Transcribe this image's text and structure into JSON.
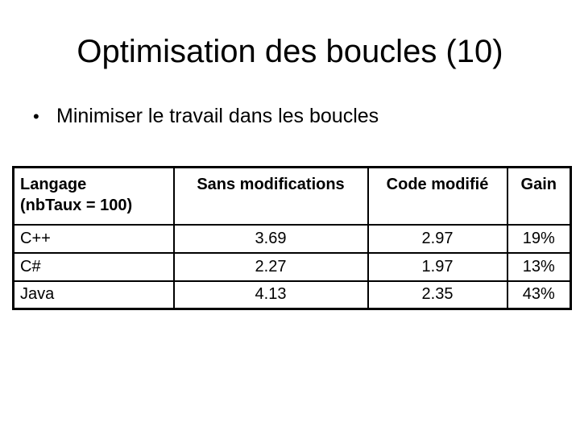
{
  "slide": {
    "title": "Optimisation des boucles (10)",
    "bullet": {
      "marker": "•",
      "text": "Minimiser le travail dans les boucles"
    }
  },
  "table": {
    "header": {
      "langage_line1": "Langage",
      "langage_line2": "(nbTaux = 100)",
      "sans_modifications": "Sans modifications",
      "code_modifie": "Code modifié",
      "gain": "Gain"
    },
    "rows": [
      {
        "langage": "C++",
        "sans_modifications": "3.69",
        "code_modifie": "2.97",
        "gain": "19%"
      },
      {
        "langage": "C#",
        "sans_modifications": "2.27",
        "code_modifie": "1.97",
        "gain": "13%"
      },
      {
        "langage": "Java",
        "sans_modifications": "4.13",
        "code_modifie": "2.35",
        "gain": "43%"
      }
    ]
  },
  "colors": {
    "background": "#ffffff",
    "text": "#000000",
    "table_border": "#000000"
  }
}
